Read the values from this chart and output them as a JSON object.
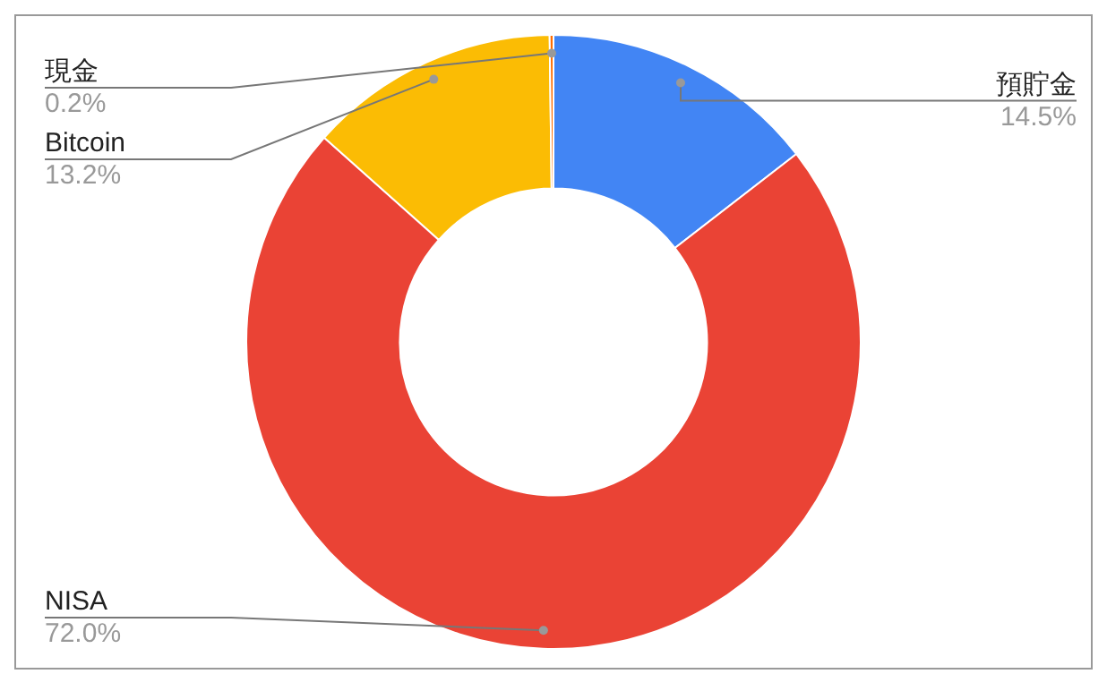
{
  "chart_data": {
    "type": "donut",
    "categories": [
      "預貯金",
      "NISA",
      "Bitcoin",
      "現金"
    ],
    "values": [
      14.5,
      72.0,
      13.2,
      0.2
    ],
    "colors": [
      "#4285f4",
      "#ea4335",
      "#fbbc04",
      "#ff6d01"
    ],
    "value_labels": [
      "14.5%",
      "72.0%",
      "13.2%",
      "0.2%"
    ],
    "legend": false
  }
}
